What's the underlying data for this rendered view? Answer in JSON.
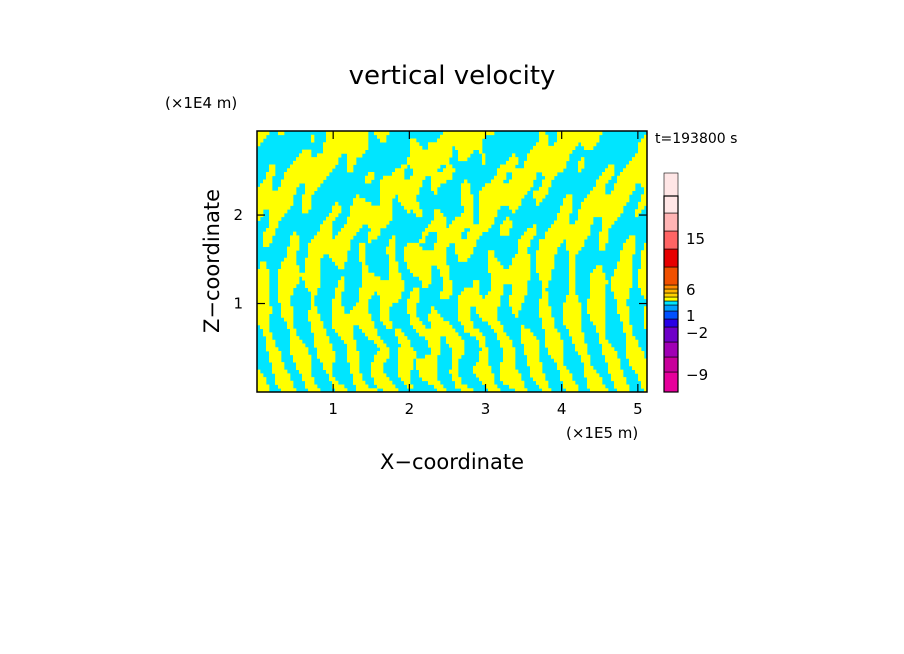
{
  "chart_data": {
    "type": "heatmap",
    "title": "vertical velocity",
    "xlabel": "X−coordinate",
    "ylabel": "Z−coordinate",
    "x_unit": "(×1E5 m)",
    "y_unit": "(×1E4 m)",
    "time_label": "t=193800 s",
    "xlim": [
      0,
      5.12
    ],
    "ylim": [
      0,
      2.95
    ],
    "x_ticks": [
      1,
      2,
      3,
      4,
      5
    ],
    "y_ticks": [
      1,
      2
    ],
    "x_tick_labels": [
      "1",
      "2",
      "3",
      "4",
      "5"
    ],
    "y_tick_labels": [
      "1",
      "2"
    ],
    "field_colors": {
      "positive": "#ffff00",
      "negative": "#00e5ff"
    },
    "colorbar": {
      "levels": [
        {
          "color": "#e6009b"
        },
        {
          "color": "#c8009b"
        },
        {
          "color": "#a000b4"
        },
        {
          "color": "#6e00c8"
        },
        {
          "color": "#2800e6"
        },
        {
          "color": "#0050ff"
        },
        {
          "color": "#00a0ff"
        },
        {
          "color": "#00e5ff"
        },
        {
          "color": "#ffff00"
        },
        {
          "color": "#ffd200"
        },
        {
          "color": "#ffb400"
        },
        {
          "color": "#ff8c00"
        },
        {
          "color": "#f05000"
        },
        {
          "color": "#e60000"
        },
        {
          "color": "#ff6464"
        },
        {
          "color": "#ffb4b4"
        },
        {
          "color": "#ffe6e6"
        }
      ],
      "tick_labels": [
        "15",
        "6",
        "1",
        "−2",
        "−9"
      ]
    }
  }
}
